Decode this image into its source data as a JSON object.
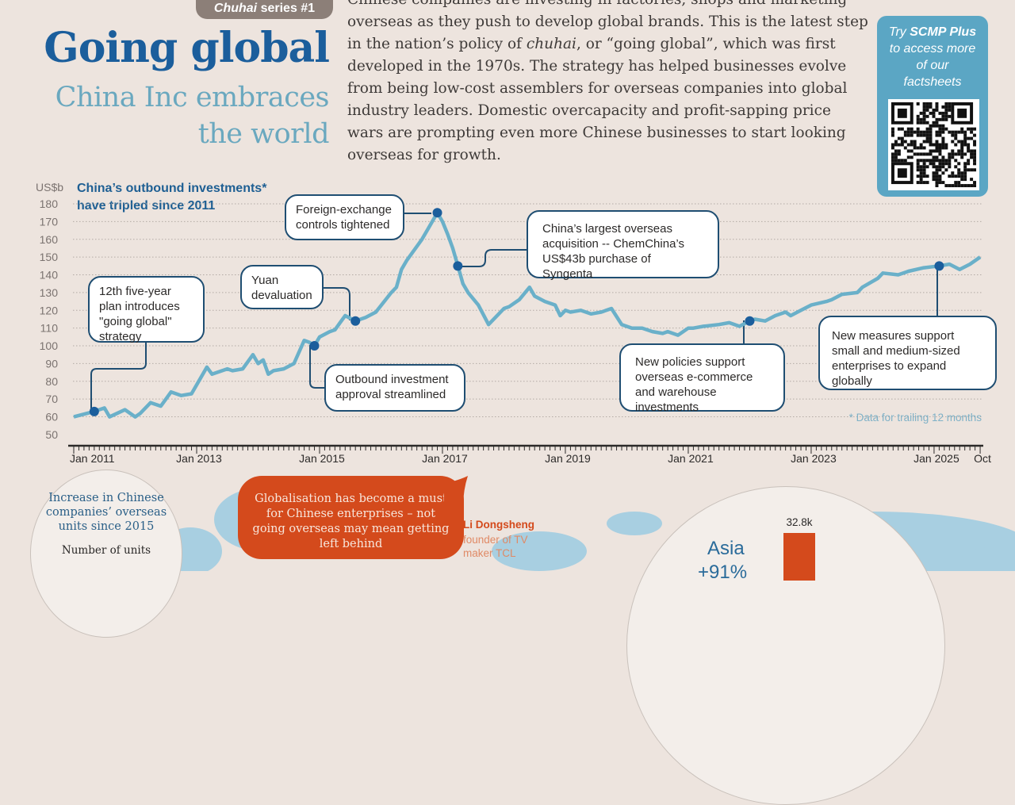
{
  "header": {
    "series_tag_italic": "Chuhai",
    "series_tag_rest": " series #1",
    "title": "Going global",
    "subtitle_line1": "China Inc embraces",
    "subtitle_line2": "the world"
  },
  "intro": {
    "lines": [
      "Chinese companies are investing in factories, shops and marketing",
      "overseas as they push to develop global brands. This is the latest step",
      "in the nation’s policy of ",
      "developed in the 1970s. The strategy has helped businesses evolve",
      "from being low-cost assemblers for overseas companies into global",
      "industry leaders. Domestic overcapacity and profit-sapping price",
      "wars are prompting even more Chinese businesses to start looking",
      "overseas for growth."
    ],
    "line3_italic": "chuhai",
    "line3_rest": ", or “going global”, which was first"
  },
  "promo": {
    "try": "Try ",
    "brand": "SCMP Plus",
    "rest": "to access more of our factsheets",
    "qr_icon": "qr-code"
  },
  "colors": {
    "background": "#ede4de",
    "title": "#1b5e9c",
    "subtitle": "#6aa8bf",
    "line": "#6ab0c9",
    "marker": "#1b5e9c",
    "annotation_border": "#1f4e72",
    "accent_orange": "#d44a1c",
    "promo": "#5ba6c4"
  },
  "chart_data": {
    "type": "line",
    "title": "China's outbound investments* have tripled since 2011",
    "title_line1": "China’s outbound investments*",
    "title_line2": "have tripled since 2011",
    "ylabel": "US$b",
    "ylim": [
      50,
      180
    ],
    "yticks": [
      50,
      60,
      70,
      80,
      90,
      100,
      110,
      120,
      130,
      140,
      150,
      160,
      170,
      180
    ],
    "xlim": [
      "2011-01",
      "2025-10"
    ],
    "xtick_labels": [
      {
        "date": "2011-01",
        "label": "Jan 2011"
      },
      {
        "date": "2013-01",
        "label": "Jan 2013"
      },
      {
        "date": "2015-01",
        "label": "Jan 2015"
      },
      {
        "date": "2017-01",
        "label": "Jan 2017"
      },
      {
        "date": "2019-01",
        "label": "Jan 2019"
      },
      {
        "date": "2021-01",
        "label": "Jan 2021"
      },
      {
        "date": "2023-01",
        "label": "Jan 2023"
      },
      {
        "date": "2025-01",
        "label": "Jan 2025"
      },
      {
        "date": "2025-10",
        "label": "Oct"
      }
    ],
    "grid": true,
    "footnote": "* Data for trailing 12 months",
    "points": [
      [
        "2011-01",
        60
      ],
      [
        "2011-05",
        63
      ],
      [
        "2011-07",
        65
      ],
      [
        "2011-08",
        60
      ],
      [
        "2011-11",
        64
      ],
      [
        "2012-01",
        60
      ],
      [
        "2012-02",
        62
      ],
      [
        "2012-04",
        68
      ],
      [
        "2012-06",
        66
      ],
      [
        "2012-08",
        74
      ],
      [
        "2012-10",
        72
      ],
      [
        "2012-12",
        73
      ],
      [
        "2013-01",
        78
      ],
      [
        "2013-03",
        88
      ],
      [
        "2013-04",
        84
      ],
      [
        "2013-07",
        87
      ],
      [
        "2013-08",
        86
      ],
      [
        "2013-10",
        87
      ],
      [
        "2013-12",
        95
      ],
      [
        "2014-01",
        90
      ],
      [
        "2014-02",
        92
      ],
      [
        "2014-03",
        84
      ],
      [
        "2014-04",
        86
      ],
      [
        "2014-06",
        87
      ],
      [
        "2014-08",
        90
      ],
      [
        "2014-10",
        103
      ],
      [
        "2014-11",
        102
      ],
      [
        "2014-12",
        100
      ],
      [
        "2015-01",
        105
      ],
      [
        "2015-03",
        108
      ],
      [
        "2015-04",
        109
      ],
      [
        "2015-05",
        113
      ],
      [
        "2015-06",
        117
      ],
      [
        "2015-08",
        114
      ],
      [
        "2015-10",
        116
      ],
      [
        "2015-12",
        119
      ],
      [
        "2016-03",
        130
      ],
      [
        "2016-04",
        133
      ],
      [
        "2016-05",
        143
      ],
      [
        "2016-06",
        148
      ],
      [
        "2016-08",
        156
      ],
      [
        "2016-09",
        160
      ],
      [
        "2016-10",
        165
      ],
      [
        "2016-11",
        170
      ],
      [
        "2016-12",
        175
      ],
      [
        "2017-01",
        170
      ],
      [
        "2017-02",
        163
      ],
      [
        "2017-03",
        155
      ],
      [
        "2017-04",
        145
      ],
      [
        "2017-05",
        135
      ],
      [
        "2017-06",
        130
      ],
      [
        "2017-08",
        123
      ],
      [
        "2017-10",
        112
      ],
      [
        "2017-12",
        118
      ],
      [
        "2018-01",
        121
      ],
      [
        "2018-02",
        122
      ],
      [
        "2018-04",
        126
      ],
      [
        "2018-06",
        133
      ],
      [
        "2018-07",
        128
      ],
      [
        "2018-09",
        125
      ],
      [
        "2018-11",
        123
      ],
      [
        "2018-12",
        117
      ],
      [
        "2019-01",
        120
      ],
      [
        "2019-02",
        119
      ],
      [
        "2019-04",
        120
      ],
      [
        "2019-06",
        118
      ],
      [
        "2019-08",
        119
      ],
      [
        "2019-10",
        121
      ],
      [
        "2019-12",
        112
      ],
      [
        "2020-02",
        110
      ],
      [
        "2020-04",
        110
      ],
      [
        "2020-06",
        108
      ],
      [
        "2020-08",
        107
      ],
      [
        "2020-09",
        108
      ],
      [
        "2020-11",
        106
      ],
      [
        "2021-01",
        110
      ],
      [
        "2021-02",
        110
      ],
      [
        "2021-04",
        111
      ],
      [
        "2021-07",
        112
      ],
      [
        "2021-09",
        113
      ],
      [
        "2021-11",
        111
      ],
      [
        "2022-01",
        114
      ],
      [
        "2022-02",
        115
      ],
      [
        "2022-04",
        114
      ],
      [
        "2022-06",
        117
      ],
      [
        "2022-08",
        119
      ],
      [
        "2022-09",
        117
      ],
      [
        "2022-11",
        120
      ],
      [
        "2023-01",
        123
      ],
      [
        "2023-04",
        125
      ],
      [
        "2023-05",
        126
      ],
      [
        "2023-07",
        129
      ],
      [
        "2023-10",
        130
      ],
      [
        "2023-11",
        133
      ],
      [
        "2024-02",
        138
      ],
      [
        "2024-03",
        141
      ],
      [
        "2024-06",
        140
      ],
      [
        "2024-08",
        142
      ],
      [
        "2024-11",
        144
      ],
      [
        "2025-02",
        145
      ],
      [
        "2025-04",
        146
      ],
      [
        "2025-06",
        143
      ],
      [
        "2025-08",
        146
      ],
      [
        "2025-10",
        150
      ]
    ],
    "annotations": [
      {
        "date": "2011-05",
        "value": 63,
        "text": "12th five-year plan introduces \"going global\" strategy"
      },
      {
        "date": "2014-12",
        "value": 100,
        "text": "Outbound investment approval streamlined"
      },
      {
        "date": "2015-08",
        "value": 114,
        "text": "Yuan devaluation"
      },
      {
        "date": "2016-12",
        "value": 175,
        "text": "Foreign-exchange controls tightened"
      },
      {
        "date": "2017-04",
        "value": 145,
        "text": "China’s largest overseas acquisition -- ChemChina’s US$43b purchase of Syngenta"
      },
      {
        "date": "2022-01",
        "value": 114,
        "text": "New policies support overseas e-commerce and warehouse investments"
      },
      {
        "date": "2025-02",
        "value": 145,
        "text": "New measures support small and medium-sized enterprises to expand globally"
      }
    ]
  },
  "bottom": {
    "units_circle": {
      "text": "Increase in Chinese companies’ overseas units since 2015",
      "sublabel": "Number of units"
    },
    "quote": {
      "text": "Globalisation has become a must for Chinese enterprises – not going overseas may mean getting left behind",
      "speaker": "Li Dongsheng",
      "speaker_role": "founder of TV maker TCL"
    },
    "region": {
      "name": "Asia",
      "change": "+91%",
      "bar_value": "32.8k"
    }
  }
}
